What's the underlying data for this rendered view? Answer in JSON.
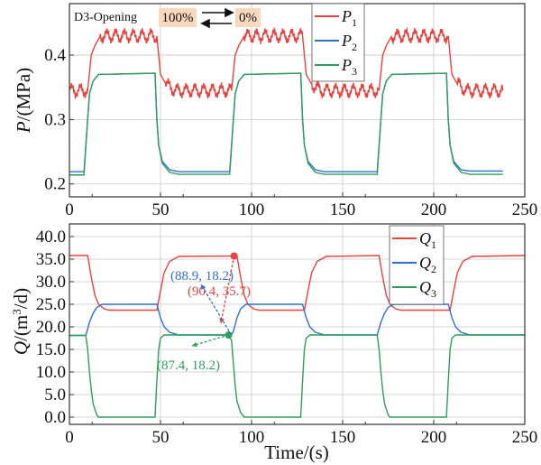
{
  "chart_data": [
    {
      "type": "line",
      "ylabel_main": "P",
      "ylabel_unit": "/(MPa)",
      "xlabel": "",
      "xlim": [
        0,
        250
      ],
      "ylim": [
        0.18,
        0.48
      ],
      "xticks": [
        0,
        50,
        100,
        150,
        200,
        250
      ],
      "yticks": [
        0.2,
        0.3,
        0.4
      ],
      "ytick_labels": [
        "0.2",
        "0.3",
        "0.4"
      ],
      "grid": true,
      "legend_position": "top-center",
      "annotation": {
        "prefix": "D3-Opening",
        "from": "100%",
        "to": "0%",
        "highlight_color": "#f8d9bd"
      },
      "series": [
        {
          "name": "P",
          "sub": "1",
          "color": "#e8423f",
          "points": [
            [
              0,
              0.345
            ],
            [
              10,
              0.345
            ],
            [
              12,
              0.4
            ],
            [
              14,
              0.415
            ],
            [
              17,
              0.43
            ],
            [
              48,
              0.43
            ],
            [
              49,
              0.4
            ],
            [
              50,
              0.37
            ],
            [
              53,
              0.355
            ],
            [
              58,
              0.345
            ],
            [
              89,
              0.345
            ],
            [
              91,
              0.4
            ],
            [
              93,
              0.415
            ],
            [
              96,
              0.43
            ],
            [
              128,
              0.43
            ],
            [
              129,
              0.4
            ],
            [
              130,
              0.37
            ],
            [
              133,
              0.355
            ],
            [
              138,
              0.345
            ],
            [
              170,
              0.345
            ],
            [
              172,
              0.4
            ],
            [
              174,
              0.415
            ],
            [
              177,
              0.43
            ],
            [
              208,
              0.43
            ],
            [
              209,
              0.4
            ],
            [
              210,
              0.37
            ],
            [
              213,
              0.355
            ],
            [
              218,
              0.345
            ],
            [
              238,
              0.345
            ]
          ]
        },
        {
          "name": "P",
          "sub": "2",
          "color": "#2f6fd0",
          "points": [
            [
              0,
              0.219
            ],
            [
              8,
              0.219
            ],
            [
              10,
              0.3
            ],
            [
              11,
              0.34
            ],
            [
              13,
              0.36
            ],
            [
              16,
              0.37
            ],
            [
              47,
              0.372
            ],
            [
              48,
              0.3
            ],
            [
              49,
              0.26
            ],
            [
              51,
              0.235
            ],
            [
              55,
              0.222
            ],
            [
              60,
              0.219
            ],
            [
              88,
              0.219
            ],
            [
              90,
              0.3
            ],
            [
              91,
              0.34
            ],
            [
              93,
              0.36
            ],
            [
              96,
              0.37
            ],
            [
              127,
              0.372
            ],
            [
              128,
              0.3
            ],
            [
              129,
              0.26
            ],
            [
              131,
              0.235
            ],
            [
              135,
              0.222
            ],
            [
              140,
              0.219
            ],
            [
              169,
              0.219
            ],
            [
              171,
              0.3
            ],
            [
              172,
              0.34
            ],
            [
              174,
              0.36
            ],
            [
              177,
              0.37
            ],
            [
              207,
              0.372
            ],
            [
              208,
              0.3
            ],
            [
              209,
              0.26
            ],
            [
              211,
              0.235
            ],
            [
              215,
              0.222
            ],
            [
              220,
              0.22
            ],
            [
              238,
              0.22
            ]
          ]
        },
        {
          "name": "P",
          "sub": "3",
          "color": "#2f9e5c",
          "points": [
            [
              0,
              0.214
            ],
            [
              8,
              0.214
            ],
            [
              10,
              0.3
            ],
            [
              11,
              0.34
            ],
            [
              13,
              0.36
            ],
            [
              16,
              0.37
            ],
            [
              47,
              0.372
            ],
            [
              48,
              0.3
            ],
            [
              49,
              0.26
            ],
            [
              51,
              0.232
            ],
            [
              55,
              0.218
            ],
            [
              60,
              0.215
            ],
            [
              88,
              0.215
            ],
            [
              90,
              0.3
            ],
            [
              91,
              0.34
            ],
            [
              93,
              0.36
            ],
            [
              96,
              0.37
            ],
            [
              127,
              0.372
            ],
            [
              128,
              0.3
            ],
            [
              129,
              0.26
            ],
            [
              131,
              0.232
            ],
            [
              135,
              0.218
            ],
            [
              140,
              0.215
            ],
            [
              169,
              0.215
            ],
            [
              171,
              0.3
            ],
            [
              172,
              0.34
            ],
            [
              174,
              0.36
            ],
            [
              177,
              0.37
            ],
            [
              207,
              0.372
            ],
            [
              208,
              0.3
            ],
            [
              209,
              0.26
            ],
            [
              211,
              0.232
            ],
            [
              215,
              0.218
            ],
            [
              220,
              0.215
            ],
            [
              238,
              0.215
            ]
          ]
        }
      ]
    },
    {
      "type": "line",
      "ylabel_main": "Q",
      "ylabel_unit": "/(m",
      "ylabel_sup": "3",
      "ylabel_tail": "/d)",
      "xlabel": "Time/(s)",
      "xlim": [
        0,
        250
      ],
      "ylim": [
        -1.6,
        42.8
      ],
      "xticks": [
        0,
        50,
        100,
        150,
        200,
        250
      ],
      "yticks": [
        0,
        5,
        10,
        15,
        20,
        25,
        30,
        35,
        40
      ],
      "ytick_labels": [
        "0.0",
        "5.0",
        "10.0",
        "15.0",
        "20.0",
        "25.0",
        "30.0",
        "35.0",
        "40.0"
      ],
      "grid": true,
      "legend_position": "top-right",
      "series": [
        {
          "name": "Q",
          "sub": "1",
          "color": "#e8423f",
          "points": [
            [
              0,
              35.8
            ],
            [
              10,
              35.8
            ],
            [
              12,
              31
            ],
            [
              14,
              27
            ],
            [
              16,
              25
            ],
            [
              19,
              24
            ],
            [
              22,
              23.7
            ],
            [
              48,
              23.7
            ],
            [
              50,
              28
            ],
            [
              52,
              32
            ],
            [
              55,
              34.5
            ],
            [
              60,
              35.6
            ],
            [
              90,
              35.7
            ],
            [
              92,
              35.7
            ],
            [
              94,
              31
            ],
            [
              96,
              27
            ],
            [
              98,
              25
            ],
            [
              101,
              24
            ],
            [
              104,
              23.7
            ],
            [
              129,
              23.7
            ],
            [
              131,
              28
            ],
            [
              133,
              32
            ],
            [
              136,
              34.5
            ],
            [
              141,
              35.6
            ],
            [
              170,
              35.8
            ],
            [
              172,
              31
            ],
            [
              174,
              27
            ],
            [
              176,
              25
            ],
            [
              179,
              24
            ],
            [
              182,
              23.7
            ],
            [
              209,
              23.7
            ],
            [
              211,
              28
            ],
            [
              213,
              32
            ],
            [
              216,
              34.5
            ],
            [
              221,
              35.6
            ],
            [
              250,
              35.8
            ]
          ]
        },
        {
          "name": "Q",
          "sub": "2",
          "color": "#2f6fd0",
          "points": [
            [
              0,
              18.1
            ],
            [
              9,
              18.1
            ],
            [
              11,
              21
            ],
            [
              13,
              23
            ],
            [
              15,
              24.3
            ],
            [
              18,
              25
            ],
            [
              48,
              25
            ],
            [
              50,
              22
            ],
            [
              52,
              20
            ],
            [
              55,
              18.8
            ],
            [
              60,
              18.2
            ],
            [
              88.9,
              18.2
            ],
            [
              90,
              19
            ],
            [
              92,
              22
            ],
            [
              94,
              24
            ],
            [
              97,
              25
            ],
            [
              128,
              25
            ],
            [
              130,
              22
            ],
            [
              132,
              20
            ],
            [
              135,
              18.8
            ],
            [
              140,
              18.2
            ],
            [
              169,
              18.2
            ],
            [
              171,
              21
            ],
            [
              173,
              23
            ],
            [
              175,
              24.3
            ],
            [
              178,
              25
            ],
            [
              208,
              25
            ],
            [
              210,
              22
            ],
            [
              212,
              20
            ],
            [
              215,
              18.8
            ],
            [
              220,
              18.2
            ],
            [
              250,
              18.2
            ]
          ]
        },
        {
          "name": "Q",
          "sub": "3",
          "color": "#2f9e5c",
          "points": [
            [
              0,
              18.1
            ],
            [
              9,
              18.1
            ],
            [
              10,
              15
            ],
            [
              11,
              10
            ],
            [
              12,
              6
            ],
            [
              13,
              3
            ],
            [
              15,
              0.5
            ],
            [
              16,
              0
            ],
            [
              47,
              0
            ],
            [
              48,
              8
            ],
            [
              49,
              15
            ],
            [
              50,
              17.5
            ],
            [
              52,
              18.2
            ],
            [
              87.4,
              18.2
            ],
            [
              89,
              17
            ],
            [
              90,
              12
            ],
            [
              91,
              7
            ],
            [
              92,
              3.5
            ],
            [
              94,
              1
            ],
            [
              96,
              0
            ],
            [
              127,
              0
            ],
            [
              128,
              8
            ],
            [
              129,
              15
            ],
            [
              130,
              17.5
            ],
            [
              132,
              18.2
            ],
            [
              169,
              18.2
            ],
            [
              170,
              15
            ],
            [
              171,
              10
            ],
            [
              172,
              6
            ],
            [
              173,
              3
            ],
            [
              175,
              0.5
            ],
            [
              176,
              0
            ],
            [
              207,
              0
            ],
            [
              208,
              8
            ],
            [
              209,
              15
            ],
            [
              210,
              17.5
            ],
            [
              212,
              18.2
            ],
            [
              250,
              18.2
            ]
          ]
        }
      ],
      "annotations": [
        {
          "label": "(90.4, 35.7)",
          "x": 90.4,
          "y": 35.7,
          "color": "#e8423f"
        },
        {
          "label": "(88.9, 18.2)",
          "x": 88.9,
          "y": 18.2,
          "color": "#2f6fd0"
        },
        {
          "label": "(87.4, 18.2)",
          "x": 87.4,
          "y": 18.2,
          "color": "#2f9e5c"
        }
      ]
    }
  ]
}
